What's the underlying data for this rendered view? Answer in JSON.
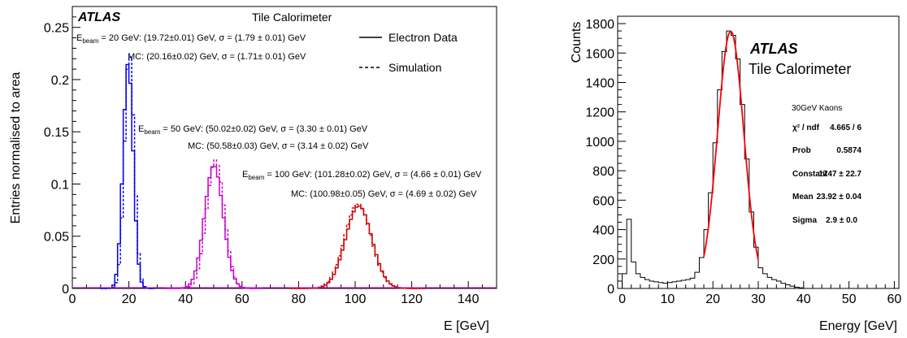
{
  "chart_data": [
    {
      "type": "histogram",
      "ylabel": "Entries normalised to area",
      "xlabel": "E [GeV]",
      "xlim": [
        0,
        150
      ],
      "ylim": [
        0,
        0.27
      ],
      "xticks": [
        "0",
        "20",
        "40",
        "60",
        "80",
        "100",
        "120",
        "140"
      ],
      "yticks": [
        "0",
        "0.05",
        "0.1",
        "0.15",
        "0.2",
        "0.25"
      ],
      "atlas_label": "ATLAS",
      "subtitle": "Tile Calorimeter",
      "legend": [
        {
          "name": "Electron Data",
          "style": "solid"
        },
        {
          "name": "Simulation",
          "style": "dashed"
        }
      ],
      "annotations": [
        {
          "beam": "20 GeV",
          "data_text": ": (19.72±0.01) GeV, σ = (1.79 ± 0.01) GeV",
          "mc_text": "MC: (20.16±0.02) GeV, σ = (1.71± 0.01) GeV"
        },
        {
          "beam": "50 GeV",
          "data_text": ": (50.02±0.02) GeV, σ = (3.30 ± 0.01) GeV",
          "mc_text": "MC: (50.58±0.03) GeV, σ = (3.14 ± 0.02) GeV"
        },
        {
          "beam": "100 GeV",
          "data_text": ": (101.28±0.02) GeV, σ = (4.66 ± 0.01) GeV",
          "mc_text": "MC: (100.98±0.05) GeV, σ = (4.69 ± 0.02) GeV"
        }
      ],
      "ebeam_prefix": "E",
      "ebeam_sub": "beam",
      "ebeam_eq": " = ",
      "series": [
        {
          "beam": "20 GeV",
          "color": "#0000ee",
          "data_mean": 19.72,
          "data_sigma": 1.79,
          "data_peak": 0.216,
          "mc_mean": 20.16,
          "mc_sigma": 1.71,
          "mc_peak": 0.226,
          "binwidth": 1
        },
        {
          "beam": "50 GeV",
          "color": "#cc00cc",
          "data_mean": 50.02,
          "data_sigma": 3.3,
          "data_peak": 0.118,
          "mc_mean": 50.58,
          "mc_sigma": 3.14,
          "mc_peak": 0.123,
          "binwidth": 1
        },
        {
          "beam": "100 GeV",
          "color": "#cc0000",
          "data_mean": 101.28,
          "data_sigma": 4.66,
          "data_peak": 0.079,
          "mc_mean": 100.98,
          "mc_sigma": 4.69,
          "mc_peak": 0.081,
          "binwidth": 1
        }
      ]
    },
    {
      "type": "histogram",
      "ylabel": "Counts",
      "xlabel": "Energy [GeV]",
      "xlim": [
        -1,
        61
      ],
      "ylim": [
        0,
        1850
      ],
      "xticks": [
        "0",
        "10",
        "20",
        "30",
        "40",
        "50",
        "60"
      ],
      "yticks": [
        "0",
        "200",
        "400",
        "600",
        "800",
        "1000",
        "1200",
        "1400",
        "1600",
        "1800"
      ],
      "atlas_label": "ATLAS",
      "subtitle": "Tile Calorimeter",
      "stats_title": "30GeV Kaons",
      "stats": [
        {
          "label": "χ² / ndf",
          "value": "4.665 / 6"
        },
        {
          "label": "Prob",
          "value": "0.5874"
        },
        {
          "label": "Constant",
          "value": "1747 ± 22.7"
        },
        {
          "label": "Mean",
          "value": "23.92 ± 0.04"
        },
        {
          "label": "Sigma",
          "value": "2.9 ± 0.0"
        }
      ],
      "fit": {
        "type": "gaussian",
        "constant": 1747,
        "mean": 23.92,
        "sigma": 2.9,
        "range": [
          18,
          30
        ],
        "color": "#ff0000"
      },
      "bins": {
        "start": 0,
        "width": 1,
        "counts": [
          100,
          470,
          180,
          100,
          75,
          60,
          50,
          45,
          40,
          35,
          40,
          45,
          50,
          55,
          60,
          70,
          110,
          210,
          400,
          650,
          990,
          1350,
          1610,
          1750,
          1720,
          1560,
          1250,
          880,
          520,
          280,
          140,
          100,
          75,
          60,
          50,
          35,
          25,
          15,
          8,
          4,
          0,
          0,
          0,
          0,
          0,
          0,
          0,
          0,
          0,
          0,
          0,
          0,
          0,
          0,
          0,
          0,
          0,
          0,
          0,
          0
        ]
      }
    }
  ]
}
